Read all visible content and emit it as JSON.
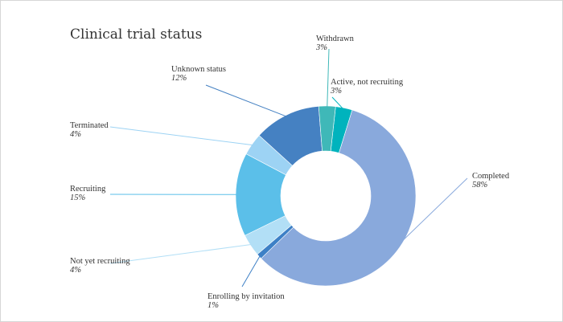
{
  "chart_data": {
    "type": "pie",
    "title": "Clinical trial status",
    "donut": true,
    "slices": [
      {
        "label": "Active, not recruiting",
        "value_label": "3%",
        "value": 3,
        "color": "#00b3bd"
      },
      {
        "label": "Completed",
        "value_label": "58%",
        "value": 58,
        "color": "#89a9dc"
      },
      {
        "label": "Enrolling by invitation",
        "value_label": "1%",
        "value": 1,
        "color": "#3d80c6"
      },
      {
        "label": "Not yet recruiting",
        "value_label": "4%",
        "value": 4,
        "color": "#b2dff6"
      },
      {
        "label": "Recruiting",
        "value_label": "15%",
        "value": 15,
        "color": "#5bbfe9"
      },
      {
        "label": "Terminated",
        "value_label": "4%",
        "value": 4,
        "color": "#9dd3f4"
      },
      {
        "label": "Unknown status",
        "value_label": "12%",
        "value": 12,
        "color": "#4581c2"
      },
      {
        "label": "Withdrawn",
        "value_label": "3%",
        "value": 3,
        "color": "#3fb8b8"
      }
    ]
  }
}
